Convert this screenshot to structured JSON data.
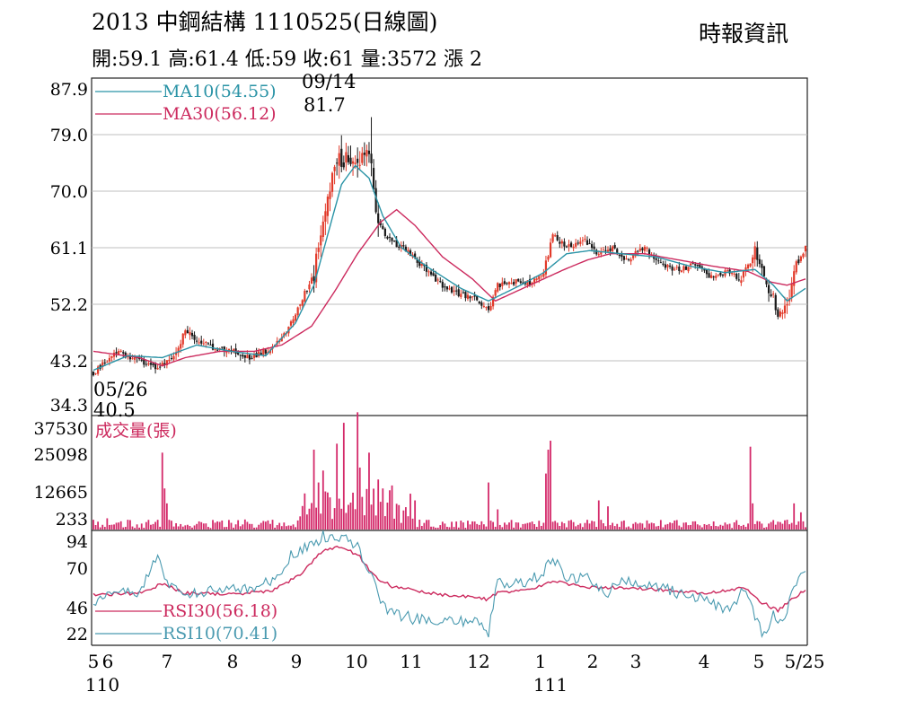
{
  "header": {
    "title": "2013 中鋼結構 1110525(日線圖)",
    "ohlc": "開:59.1 高:61.4 低:59 收:61 量:3572 漲 2",
    "source": "時報資訊"
  },
  "colors": {
    "up": "#e23a2a",
    "down": "#1a1a1a",
    "ma10": "#2a93a6",
    "ma30": "#cc2a5e",
    "volume": "#d42a6a",
    "rsi10": "#4a9ab0",
    "rsi30": "#cc2a5e",
    "frame": "#222222",
    "grid": "#bfbfbf"
  },
  "chart_data": [
    {
      "type": "candlestick",
      "panel": "price",
      "y_ticks": [
        "87.9",
        "79.0",
        "70.0",
        "61.1",
        "52.2",
        "43.2",
        "34.3"
      ],
      "ylim": [
        34.3,
        87.9
      ],
      "legend": [
        {
          "key": "ma10",
          "label": "MA10(54.55)"
        },
        {
          "key": "ma30",
          "label": "MA30(56.12)"
        }
      ],
      "annotations": {
        "high": {
          "date": "09/14",
          "value": "81.7"
        },
        "low": {
          "date": "05/26",
          "value": "40.5"
        }
      },
      "anchors": [
        [
          0,
          41.0
        ],
        [
          10,
          44.5
        ],
        [
          20,
          43.0
        ],
        [
          28,
          42.0
        ],
        [
          36,
          44.0
        ],
        [
          40,
          48.0
        ],
        [
          44,
          46.5
        ],
        [
          52,
          45.0
        ],
        [
          60,
          44.5
        ],
        [
          68,
          43.5
        ],
        [
          78,
          45.0
        ],
        [
          84,
          47.5
        ],
        [
          90,
          52.0
        ],
        [
          96,
          57.0
        ],
        [
          100,
          64.0
        ],
        [
          103,
          70.0
        ],
        [
          106,
          75.0
        ],
        [
          110,
          75.0
        ],
        [
          114,
          74.0
        ],
        [
          118,
          76.0
        ],
        [
          121,
          74.0
        ],
        [
          124,
          64.5
        ],
        [
          130,
          62.0
        ],
        [
          138,
          60.0
        ],
        [
          146,
          57.0
        ],
        [
          152,
          55.0
        ],
        [
          160,
          53.5
        ],
        [
          168,
          52.5
        ],
        [
          172,
          51.0
        ],
        [
          176,
          55.0
        ],
        [
          184,
          55.5
        ],
        [
          190,
          55.5
        ],
        [
          196,
          57.0
        ],
        [
          200,
          63.0
        ],
        [
          206,
          61.0
        ],
        [
          214,
          62.0
        ],
        [
          220,
          60.0
        ],
        [
          226,
          61.0
        ],
        [
          232,
          59.0
        ],
        [
          240,
          61.0
        ],
        [
          248,
          58.0
        ],
        [
          256,
          57.5
        ],
        [
          262,
          58.5
        ],
        [
          268,
          56.5
        ],
        [
          276,
          57.0
        ],
        [
          282,
          56.0
        ],
        [
          288,
          60.5
        ],
        [
          292,
          56.0
        ],
        [
          296,
          53.0
        ],
        [
          298,
          50.5
        ],
        [
          302,
          52.0
        ],
        [
          306,
          58.0
        ],
        [
          310,
          61.0
        ]
      ],
      "ma10_anchors": [
        [
          0,
          41.5
        ],
        [
          15,
          43.8
        ],
        [
          30,
          43.5
        ],
        [
          45,
          45.5
        ],
        [
          60,
          44.5
        ],
        [
          75,
          43.8
        ],
        [
          88,
          49.0
        ],
        [
          96,
          55.0
        ],
        [
          102,
          63.0
        ],
        [
          108,
          71.0
        ],
        [
          114,
          74.0
        ],
        [
          120,
          72.0
        ],
        [
          126,
          66.0
        ],
        [
          134,
          61.0
        ],
        [
          145,
          58.0
        ],
        [
          160,
          54.5
        ],
        [
          172,
          52.5
        ],
        [
          186,
          55.0
        ],
        [
          196,
          57.0
        ],
        [
          206,
          60.0
        ],
        [
          216,
          60.5
        ],
        [
          230,
          60.0
        ],
        [
          245,
          59.5
        ],
        [
          260,
          58.0
        ],
        [
          275,
          57.0
        ],
        [
          288,
          57.5
        ],
        [
          296,
          55.0
        ],
        [
          302,
          52.5
        ],
        [
          310,
          54.5
        ]
      ],
      "ma30_anchors": [
        [
          0,
          44.5
        ],
        [
          20,
          43.5
        ],
        [
          30,
          42.2
        ],
        [
          40,
          43.5
        ],
        [
          55,
          44.5
        ],
        [
          70,
          44.5
        ],
        [
          82,
          45.5
        ],
        [
          95,
          48.5
        ],
        [
          105,
          54.0
        ],
        [
          115,
          60.0
        ],
        [
          125,
          65.0
        ],
        [
          132,
          67.0
        ],
        [
          140,
          64.5
        ],
        [
          152,
          59.5
        ],
        [
          165,
          56.0
        ],
        [
          175,
          52.5
        ],
        [
          190,
          55.0
        ],
        [
          205,
          57.5
        ],
        [
          215,
          59.0
        ],
        [
          225,
          60.0
        ],
        [
          240,
          60.0
        ],
        [
          255,
          59.0
        ],
        [
          270,
          58.0
        ],
        [
          285,
          57.2
        ],
        [
          295,
          55.5
        ],
        [
          302,
          55.0
        ],
        [
          310,
          56.0
        ]
      ]
    },
    {
      "type": "bar",
      "panel": "volume",
      "label": "成交量(張)",
      "y_ticks": [
        "37530",
        "25098",
        "12665",
        "233"
      ],
      "ylim": [
        233,
        37530
      ],
      "spikes": [
        [
          6,
          4000
        ],
        [
          12,
          3000
        ],
        [
          30,
          26000
        ],
        [
          31,
          14000
        ],
        [
          32,
          9000
        ],
        [
          96,
          27000
        ],
        [
          98,
          16000
        ],
        [
          100,
          20000
        ],
        [
          101,
          13000
        ],
        [
          103,
          11000
        ],
        [
          106,
          29000
        ],
        [
          109,
          36000
        ],
        [
          115,
          40000
        ],
        [
          116,
          21000
        ],
        [
          120,
          26000
        ],
        [
          124,
          17000
        ],
        [
          126,
          14000
        ],
        [
          130,
          15000
        ],
        [
          140,
          10000
        ],
        [
          172,
          16000
        ],
        [
          176,
          7000
        ],
        [
          197,
          19000
        ],
        [
          198,
          27000
        ],
        [
          199,
          30000
        ],
        [
          220,
          10000
        ],
        [
          224,
          8000
        ],
        [
          286,
          28000
        ],
        [
          287,
          9000
        ],
        [
          305,
          9000
        ],
        [
          308,
          6000
        ]
      ],
      "base_level": 2400
    },
    {
      "type": "line",
      "panel": "rsi",
      "y_ticks": [
        "94",
        "70",
        "46",
        "22"
      ],
      "ylim": [
        14,
        100
      ],
      "legend": [
        {
          "key": "rsi30",
          "label": "RSI30(56.18)"
        },
        {
          "key": "rsi10",
          "label": "RSI10(70.41)"
        }
      ],
      "rsi10_anchors": [
        [
          0,
          48
        ],
        [
          10,
          52
        ],
        [
          20,
          53
        ],
        [
          28,
          84
        ],
        [
          32,
          60
        ],
        [
          40,
          52
        ],
        [
          50,
          55
        ],
        [
          60,
          58
        ],
        [
          68,
          55
        ],
        [
          78,
          62
        ],
        [
          86,
          82
        ],
        [
          94,
          88
        ],
        [
          100,
          96
        ],
        [
          105,
          93
        ],
        [
          110,
          97
        ],
        [
          116,
          85
        ],
        [
          122,
          60
        ],
        [
          128,
          38
        ],
        [
          140,
          34
        ],
        [
          155,
          33
        ],
        [
          168,
          30
        ],
        [
          172,
          24
        ],
        [
          176,
          62
        ],
        [
          186,
          60
        ],
        [
          196,
          68
        ],
        [
          200,
          80
        ],
        [
          206,
          62
        ],
        [
          214,
          66
        ],
        [
          222,
          52
        ],
        [
          232,
          62
        ],
        [
          244,
          60
        ],
        [
          256,
          52
        ],
        [
          266,
          50
        ],
        [
          276,
          40
        ],
        [
          284,
          58
        ],
        [
          288,
          33
        ],
        [
          292,
          20
        ],
        [
          296,
          40
        ],
        [
          300,
          28
        ],
        [
          304,
          55
        ],
        [
          310,
          70
        ]
      ],
      "rsi30_anchors": [
        [
          0,
          52
        ],
        [
          20,
          53
        ],
        [
          30,
          60
        ],
        [
          40,
          53
        ],
        [
          60,
          52
        ],
        [
          78,
          55
        ],
        [
          90,
          67
        ],
        [
          100,
          85
        ],
        [
          108,
          88
        ],
        [
          116,
          80
        ],
        [
          122,
          66
        ],
        [
          130,
          58
        ],
        [
          150,
          52
        ],
        [
          168,
          50
        ],
        [
          172,
          48
        ],
        [
          176,
          54
        ],
        [
          190,
          55
        ],
        [
          200,
          62
        ],
        [
          212,
          58
        ],
        [
          230,
          57
        ],
        [
          250,
          55
        ],
        [
          268,
          53
        ],
        [
          284,
          57
        ],
        [
          290,
          47
        ],
        [
          298,
          40
        ],
        [
          304,
          48
        ],
        [
          310,
          56
        ]
      ]
    }
  ],
  "x_axis": {
    "ticks": [
      "5",
      "6",
      "7",
      "8",
      "9",
      "10",
      "11",
      "12",
      "1",
      "2",
      "3",
      "4",
      "5",
      "5/25"
    ],
    "years": [
      "110",
      "111"
    ]
  }
}
